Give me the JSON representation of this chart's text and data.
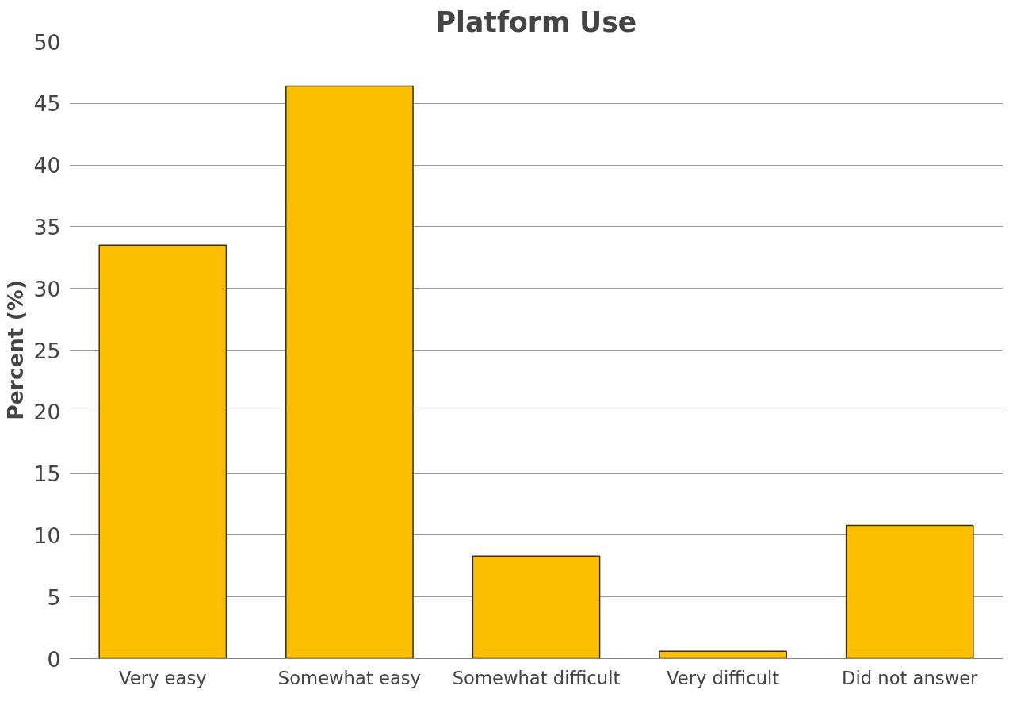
{
  "chart_data": {
    "type": "bar",
    "title": "Platform Use",
    "ylabel": "Percent (%)",
    "categories": [
      "Very easy",
      "Somewhat easy",
      "Somewhat difficult",
      "Very difficult",
      "Did not answer"
    ],
    "values": [
      33.5,
      46.4,
      8.3,
      0.6,
      10.8
    ],
    "color": "#fcbf00",
    "ylim": [
      0,
      50
    ],
    "yticks": [
      0,
      5,
      10,
      15,
      20,
      25,
      30,
      35,
      40,
      45,
      50
    ],
    "grid": "y"
  }
}
